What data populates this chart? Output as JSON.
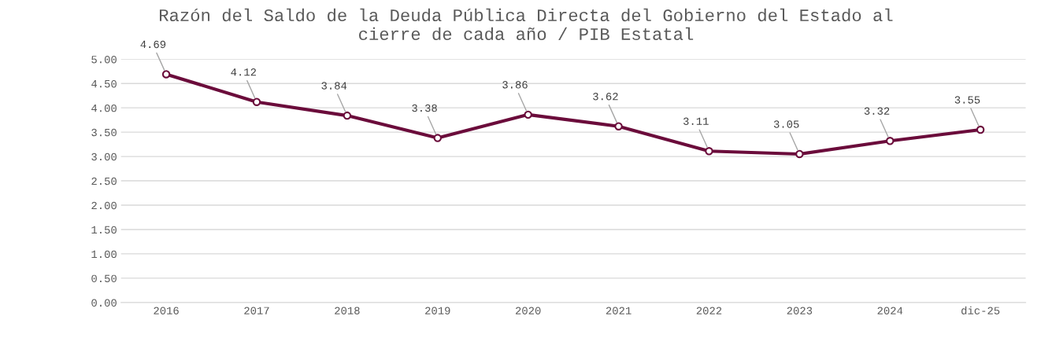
{
  "chart_data": {
    "type": "line",
    "title": "Razón del Saldo de la Deuda Pública Directa del Gobierno del Estado al\ncierre de cada año / PIB Estatal",
    "categories": [
      "2016",
      "2017",
      "2018",
      "2019",
      "2020",
      "2021",
      "2022",
      "2023",
      "2024",
      "dic-25"
    ],
    "series": [
      {
        "color": "#6b0c3b",
        "values": [
          4.69,
          4.12,
          3.84,
          3.38,
          3.86,
          3.62,
          3.11,
          3.05,
          3.32,
          3.55
        ]
      }
    ],
    "ylim": [
      0,
      5
    ],
    "yticks": [
      {
        "value": 0,
        "label": "0.00"
      },
      {
        "value": 0.5,
        "label": "0.50"
      },
      {
        "value": 1,
        "label": "1.00"
      },
      {
        "value": 1.5,
        "label": "1.50"
      },
      {
        "value": 2,
        "label": "2.00"
      },
      {
        "value": 2.5,
        "label": "2.50"
      },
      {
        "value": 3,
        "label": "3.00"
      },
      {
        "value": 3.5,
        "label": "3.50"
      },
      {
        "value": 4,
        "label": "4.00"
      },
      {
        "value": 4.5,
        "label": "4.50"
      },
      {
        "value": 5,
        "label": "5.00"
      }
    ],
    "grid": "y",
    "marker": "circle",
    "line_style": "solid",
    "data_labels": true
  }
}
